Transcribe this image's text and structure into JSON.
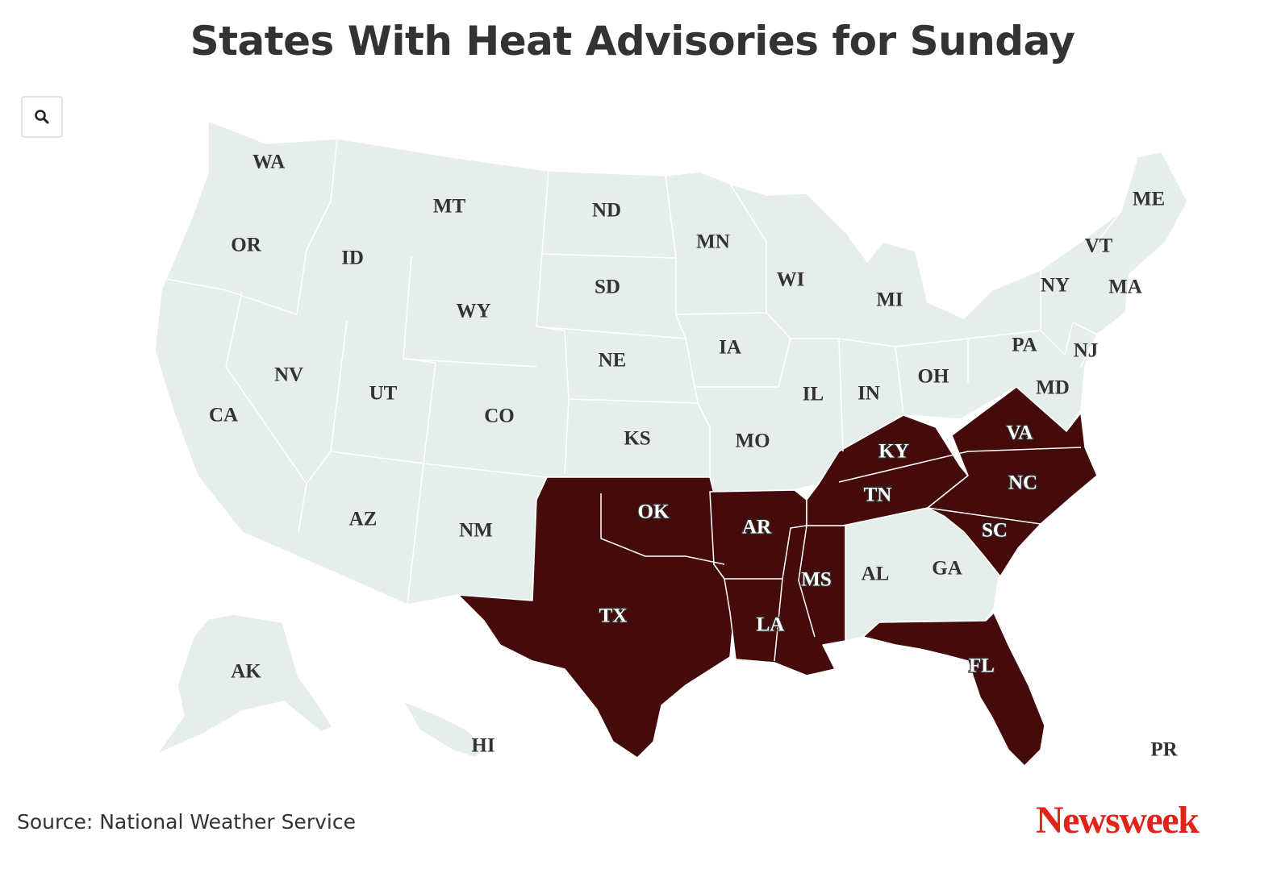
{
  "title": "States With Heat Advisories for Sunday",
  "source": "Source: National Weather Service",
  "logo": "Newsweek",
  "zoom_button": {
    "icon": "search-icon"
  },
  "colors": {
    "advisory": "#450b0a",
    "no_advisory": "#e6eeeb",
    "state_border": "#ffffff",
    "label_text": "#333333",
    "logo": "#e2231a"
  },
  "states_with_advisory": [
    "TX",
    "OK",
    "AR",
    "LA",
    "MS",
    "TN",
    "KY",
    "VA",
    "NC",
    "SC",
    "FL"
  ],
  "state_labels": [
    "WA",
    "OR",
    "CA",
    "ID",
    "NV",
    "MT",
    "WY",
    "UT",
    "AZ",
    "CO",
    "NM",
    "ND",
    "SD",
    "NE",
    "KS",
    "OK",
    "TX",
    "MN",
    "IA",
    "MO",
    "AR",
    "LA",
    "WI",
    "IL",
    "MI",
    "IN",
    "OH",
    "KY",
    "TN",
    "MS",
    "AL",
    "GA",
    "FL",
    "SC",
    "NC",
    "VA",
    "PA",
    "NY",
    "VT",
    "ME",
    "MA",
    "NJ",
    "MD",
    "AK",
    "HI",
    "PR"
  ]
}
